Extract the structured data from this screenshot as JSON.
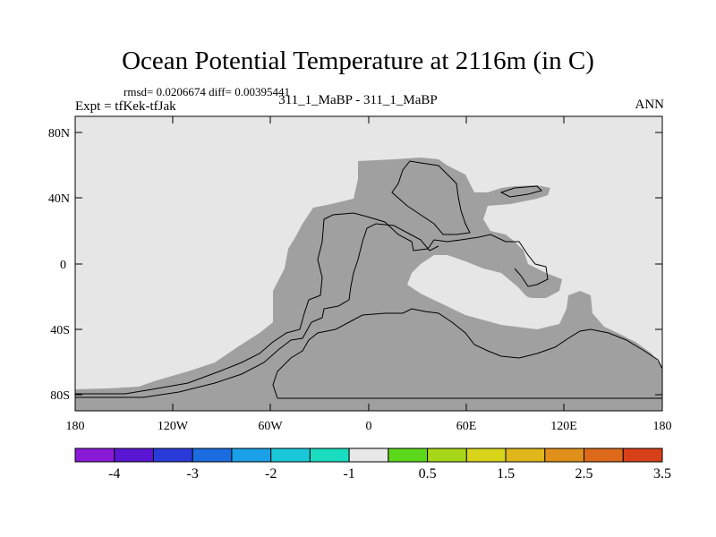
{
  "title": "Ocean Potential Temperature at 2116m (in C)",
  "stats": "rmsd= 0.0206674 diff= 0.00395441",
  "experiment": "Expt = tfKek-tfJak",
  "subtitle": "311_1_MaBP - 311_1_MaBP",
  "season": "ANN",
  "colors": {
    "land": "#e6e6e6",
    "ocean_fill": "#a0a0a0",
    "contour": "#000000"
  },
  "lat_axis": {
    "labels": [
      "80N",
      "40N",
      "0",
      "40S",
      "80S"
    ]
  },
  "lon_axis": {
    "labels": [
      "180",
      "120W",
      "60W",
      "0",
      "60E",
      "120E",
      "180"
    ]
  },
  "colorbar": {
    "colors": [
      "#8a1ad6",
      "#5a16d2",
      "#2a3ad8",
      "#1a6ce0",
      "#1aa0e6",
      "#1ac8da",
      "#1adcc0",
      "#e8e8e8",
      "#5cd81a",
      "#a8d61a",
      "#d8d41a",
      "#e0b61a",
      "#e0901a",
      "#dc6a1a",
      "#d8401a"
    ],
    "labels": [
      "-4",
      "-3",
      "-2",
      "-1",
      "0.5",
      "1.5",
      "2.5",
      "3.5"
    ]
  }
}
